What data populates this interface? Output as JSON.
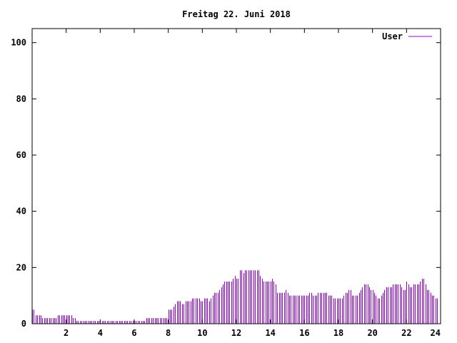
{
  "chart_data": {
    "type": "bar",
    "title": "Freitag 22. Juni 2018",
    "xlabel": "",
    "ylabel": "",
    "xlim": [
      0,
      24
    ],
    "ylim": [
      0,
      105
    ],
    "x_ticks": [
      2,
      4,
      6,
      8,
      10,
      12,
      14,
      16,
      18,
      20,
      22,
      24
    ],
    "y_ticks": [
      0,
      20,
      40,
      60,
      80,
      100
    ],
    "grid": false,
    "legend_position": "top-right",
    "colors": {
      "series": "#9400D3",
      "frame": "#000000"
    },
    "series": [
      {
        "name": "User",
        "step_hours": 0.1,
        "values": [
          5,
          5,
          3,
          3,
          3,
          3,
          2,
          2,
          2,
          2,
          2,
          2,
          2,
          2,
          2,
          3,
          3,
          3,
          3,
          3,
          3,
          3,
          3,
          3,
          2,
          2,
          1,
          1,
          1,
          1,
          1,
          1,
          1,
          1,
          1,
          1,
          1,
          1,
          1,
          1,
          1,
          1,
          1,
          1,
          1,
          1,
          1,
          1,
          1,
          1,
          1,
          1,
          1,
          1,
          1,
          1,
          1,
          1,
          1,
          1,
          1,
          1,
          1,
          1,
          1,
          1,
          1,
          2,
          2,
          2,
          2,
          2,
          2,
          2,
          2,
          2,
          2,
          2,
          2,
          2,
          5,
          5,
          5,
          6,
          7,
          8,
          8,
          8,
          7,
          7,
          8,
          8,
          8,
          8,
          9,
          9,
          9,
          9,
          9,
          8,
          8,
          9,
          9,
          9,
          8,
          9,
          10,
          11,
          11,
          11,
          12,
          13,
          14,
          15,
          15,
          15,
          15,
          15,
          16,
          17,
          16,
          16,
          19,
          19,
          18,
          19,
          19,
          19,
          19,
          19,
          19,
          19,
          19,
          19,
          17,
          16,
          15,
          15,
          15,
          15,
          15,
          16,
          15,
          14,
          11,
          11,
          11,
          11,
          11,
          12,
          11,
          10,
          10,
          10,
          10,
          10,
          10,
          10,
          10,
          10,
          10,
          10,
          10,
          11,
          11,
          10,
          10,
          10,
          11,
          11,
          11,
          11,
          11,
          11,
          10,
          10,
          10,
          9,
          9,
          9,
          9,
          9,
          9,
          10,
          11,
          11,
          12,
          12,
          10,
          10,
          10,
          10,
          11,
          12,
          13,
          14,
          14,
          14,
          13,
          12,
          12,
          11,
          10,
          9,
          9,
          10,
          11,
          12,
          13,
          13,
          13,
          13,
          14,
          14,
          14,
          14,
          14,
          13,
          12,
          12,
          15,
          14,
          13,
          13,
          14,
          14,
          14,
          14,
          15,
          16,
          16,
          14,
          12,
          12,
          11,
          10,
          10,
          9,
          9
        ]
      }
    ]
  }
}
